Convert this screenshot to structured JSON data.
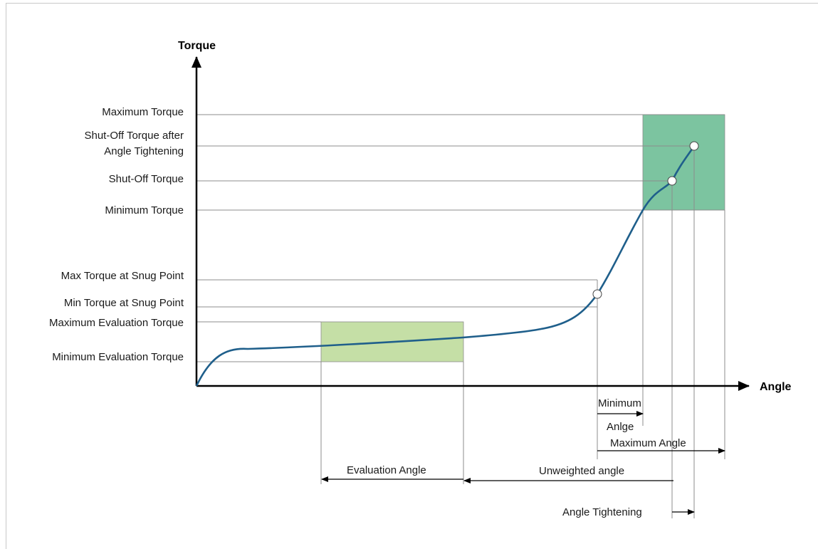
{
  "axes": {
    "y_title": "Torque",
    "x_title": "Angle"
  },
  "torque_levels": {
    "maximum_torque": "Maximum Torque",
    "shutoff_after_angle_line1": "Shut-Off Torque after",
    "shutoff_after_angle_line2": "Angle Tightening",
    "shutoff_torque": "Shut-Off Torque ",
    "minimum_torque": "Minimum Torque",
    "max_torque_snug": "Max Torque at Snug Point",
    "min_torque_snug": "Min Torque at Snug Point",
    "max_eval_torque": "Maximum Evaluation Torque",
    "min_eval_torque": "Minimum Evaluation Torque"
  },
  "angle_labels": {
    "minimum_angle_line1": "Minimum",
    "minimum_angle_line2": "Anlge",
    "maximum_angle": "Maximum Angle",
    "evaluation_angle": "Evaluation Angle",
    "unweighted_angle": "Unweighted angle",
    "angle_tightening": "Angle Tightening"
  },
  "colors": {
    "curve": "#1f5f8b",
    "eval_window": "#c5dfa6",
    "target_window": "#7cc4a0",
    "guide_lines": "#8c8c8c"
  }
}
